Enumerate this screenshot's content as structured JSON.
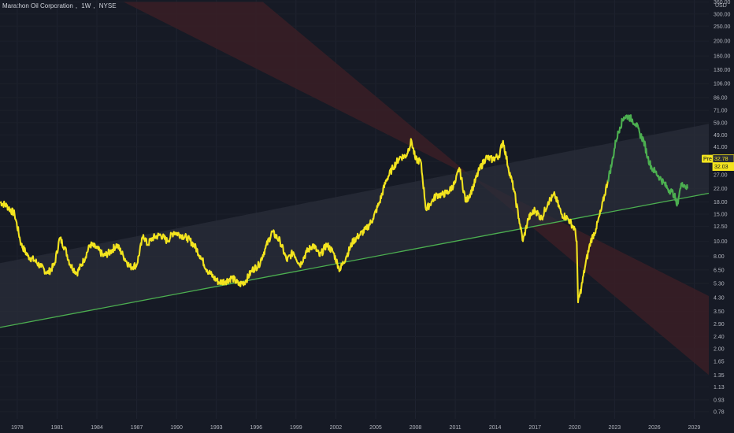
{
  "header": {
    "symbol": "Marathon Oil Corporation",
    "interval": "1W",
    "exchange": "NYSE"
  },
  "colors": {
    "background": "#161a25",
    "price_main": "#f3e41f",
    "price_recent": "#4caf50",
    "support_line": "#4caf50",
    "upper_channel_fill": "#2a2e39",
    "falling_channel_fill": "#3a1f26"
  },
  "chart_data": {
    "type": "line",
    "title": "Marathon Oil Corporation, 1W, NYSE",
    "yscale": "log",
    "ylabel": "USD",
    "ylim": [
      0.7,
      370
    ],
    "xlim": [
      1976.7,
      2030.1
    ],
    "x_ticks": [
      "1978",
      "1981",
      "1984",
      "1987",
      "1990",
      "1993",
      "1996",
      "1999",
      "2002",
      "2005",
      "2008",
      "2011",
      "2014",
      "2017",
      "2020",
      "2023",
      "2026",
      "2029"
    ],
    "y_ticks": [
      "360.00",
      "300.00",
      "250.00",
      "200.00",
      "160.00",
      "130.00",
      "106.00",
      "86.00",
      "71.00",
      "59.00",
      "49.00",
      "41.00",
      "33.00",
      "27.00",
      "22.00",
      "18.00",
      "15.00",
      "12.50",
      "10.00",
      "8.00",
      "6.50",
      "5.30",
      "4.30",
      "3.50",
      "2.90",
      "2.40",
      "2.00",
      "1.65",
      "1.35",
      "1.13",
      "0.93",
      "0.78"
    ],
    "price_tags": [
      {
        "label": "Pre",
        "value": "32.78"
      },
      {
        "value": "32.03"
      }
    ],
    "series": [
      {
        "color": "#f3e41f",
        "x": [
          1976.7,
          1977.2,
          1977.8,
          1978.3,
          1978.8,
          1979.3,
          1979.8,
          1980.3,
          1980.8,
          1981.2,
          1981.6,
          1982.0,
          1982.5,
          1983.0,
          1983.5,
          1984.0,
          1984.5,
          1985.0,
          1985.5,
          1986.0,
          1986.5,
          1987.0,
          1987.5,
          1987.8,
          1988.2,
          1988.8,
          1989.3,
          1989.8,
          1990.3,
          1990.8,
          1991.3,
          1991.8,
          1992.3,
          1992.8,
          1993.2,
          1993.7,
          1994.2,
          1994.7,
          1995.2,
          1995.7,
          1996.2,
          1996.7,
          1997.2,
          1997.8,
          1998.3,
          1998.8,
          1999.3,
          1999.8,
          2000.3,
          2000.8,
          2001.3,
          2001.8,
          2002.3,
          2002.8,
          2003.3,
          2003.8,
          2004.3,
          2004.8,
          2005.3,
          2005.8,
          2006.3,
          2006.8,
          2007.3,
          2007.7,
          2008.0,
          2008.4,
          2008.8,
          2009.2,
          2009.6,
          2010.0,
          2010.5,
          2011.0,
          2011.3,
          2011.8,
          2012.3,
          2012.8,
          2013.3,
          2013.8,
          2014.3,
          2014.6,
          2015.0,
          2015.4,
          2015.8,
          2016.1,
          2016.5,
          2017.0,
          2017.5,
          2018.0,
          2018.5,
          2019.0,
          2019.5,
          2020.0,
          2020.15,
          2020.25,
          2020.5,
          2020.8,
          2021.2,
          2021.6,
          2022.0,
          2022.5
        ],
        "y": [
          18.0,
          17.0,
          15.0,
          9.5,
          8.0,
          7.5,
          6.8,
          6.2,
          7.0,
          10.5,
          9.0,
          7.0,
          6.2,
          7.5,
          9.5,
          9.0,
          8.0,
          8.5,
          9.5,
          8.0,
          6.8,
          7.0,
          11.0,
          9.5,
          10.5,
          11.0,
          10.0,
          11.5,
          11.0,
          10.5,
          9.5,
          8.0,
          6.5,
          5.8,
          5.4,
          5.5,
          5.8,
          5.2,
          5.5,
          6.5,
          7.0,
          9.0,
          11.5,
          10.0,
          7.5,
          8.5,
          7.0,
          8.5,
          9.5,
          8.0,
          9.5,
          8.5,
          6.5,
          8.0,
          10.0,
          11.0,
          12.0,
          14.0,
          18.0,
          25.0,
          30.0,
          35.0,
          36.0,
          45.0,
          34.0,
          33.0,
          16.0,
          18.0,
          20.0,
          20.0,
          21.0,
          24.0,
          30.0,
          18.0,
          22.0,
          29.0,
          35.0,
          34.0,
          36.0,
          45.0,
          30.0,
          22.0,
          14.0,
          10.0,
          14.0,
          16.0,
          14.0,
          18.0,
          20.0,
          15.0,
          14.0,
          12.0,
          10.0,
          4.0,
          5.0,
          7.0,
          10.0,
          12.0,
          16.0,
          25.0
        ]
      },
      {
        "color": "#4caf50",
        "x": [
          2022.5,
          2022.8,
          2023.1,
          2023.4,
          2023.7,
          2024.0,
          2024.3,
          2024.6,
          2024.9,
          2025.2,
          2025.5,
          2025.8,
          2026.1,
          2026.4,
          2026.7,
          2027.0,
          2027.3,
          2027.5,
          2027.7,
          2027.9,
          2028.1,
          2028.3,
          2028.5
        ],
        "y": [
          25.0,
          32.0,
          45.0,
          55.0,
          64.0,
          65.0,
          62.0,
          58.0,
          50.0,
          45.0,
          35.0,
          30.0,
          28.0,
          26.0,
          24.0,
          22.0,
          21.0,
          20.0,
          17.0,
          21.0,
          24.0,
          23.0,
          22.0
        ]
      }
    ],
    "support_line": {
      "x": [
        1976.7,
        2030.1
      ],
      "y": [
        2.75,
        20.5
      ]
    },
    "upper_channel": {
      "x": [
        1976.7,
        2030.1
      ],
      "y_lower": [
        2.75,
        20.5
      ],
      "y_upper": [
        7.2,
        58.0
      ]
    },
    "falling_channel": {
      "x": [
        1984.0,
        2030.1
      ],
      "y_upper": [
        360,
        4.4
      ],
      "y_lower": [
        360,
        1.35
      ],
      "x_top": [
        1986.0,
        1996.5
      ]
    }
  }
}
